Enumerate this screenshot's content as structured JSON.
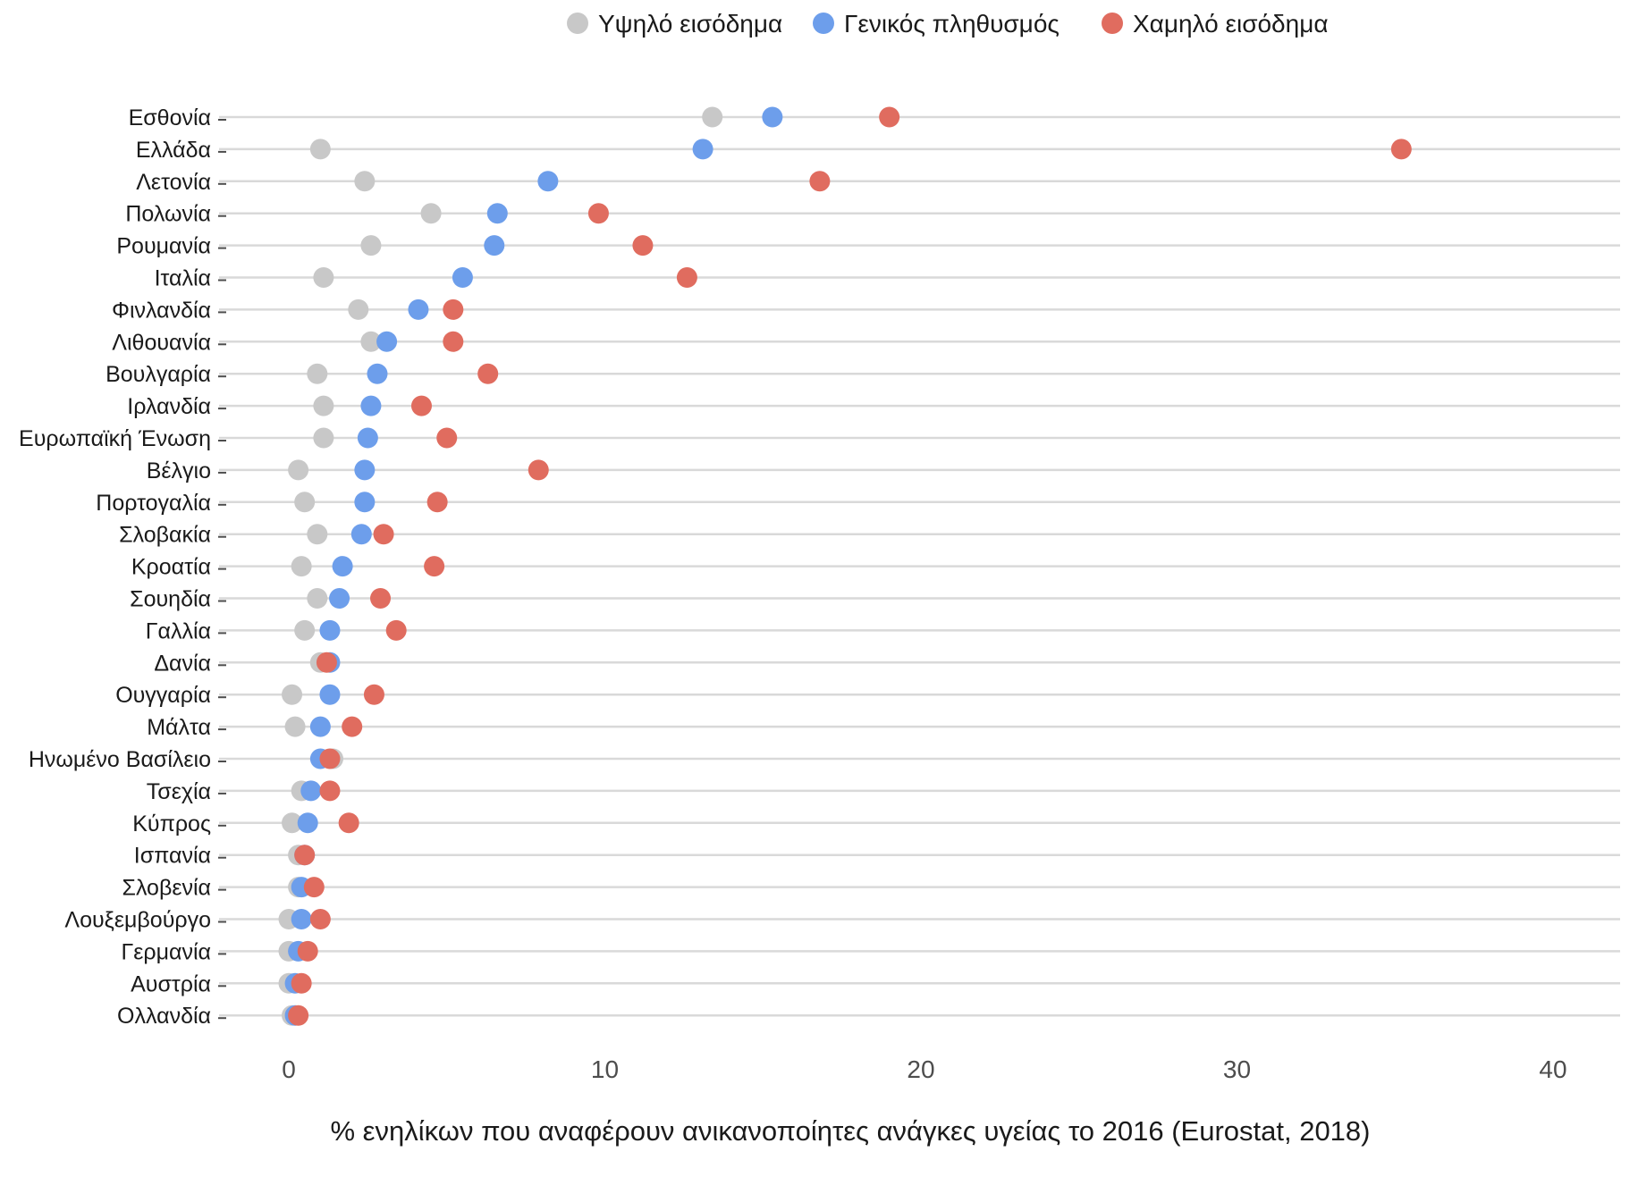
{
  "chart_data": {
    "type": "scatter",
    "title": "",
    "xlabel": "% ενηλίκων που αναφέρουν ανικανοποίητες ανάγκες υγείας το 2016 (Eurostat, 2018)",
    "ylabel": "",
    "xlim": [
      -2,
      42
    ],
    "xticks": [
      0,
      10,
      20,
      30,
      40
    ],
    "grid": "horizontal",
    "legend_position": "top",
    "categories": [
      "Εσθονία",
      "Ελλάδα",
      "Λετονία",
      "Πολωνία",
      "Ρουμανία",
      "Ιταλία",
      "Φινλανδία",
      "Λιθουανία",
      "Βουλγαρία",
      "Ιρλανδία",
      "Ευρωπαϊκή Ένωση",
      "Βέλγιο",
      "Πορτογαλία",
      "Σλοβακία",
      "Κροατία",
      "Σουηδία",
      "Γαλλία",
      "Δανία",
      "Ουγγαρία",
      "Μάλτα",
      "Ηνωμένο Βασίλειο",
      "Τσεχία",
      "Κύπρος",
      "Ισπανία",
      "Σλοβενία",
      "Λουξεμβούργο",
      "Γερμανία",
      "Αυστρία",
      "Ολλανδία"
    ],
    "series": [
      {
        "name": "Υψηλό εισόδημα",
        "color": "#c8c8c8",
        "values": [
          13.4,
          1.0,
          2.4,
          4.5,
          2.6,
          1.1,
          2.2,
          2.6,
          0.9,
          1.1,
          1.1,
          0.3,
          0.5,
          0.9,
          0.4,
          0.9,
          0.5,
          1.0,
          0.1,
          0.2,
          1.4,
          0.4,
          0.1,
          0.3,
          0.3,
          0.0,
          0.0,
          0.0,
          0.1
        ]
      },
      {
        "name": "Γενικός πληθυσμός",
        "color": "#6d9eeb",
        "values": [
          15.3,
          13.1,
          8.2,
          6.6,
          6.5,
          5.5,
          4.1,
          3.1,
          2.8,
          2.6,
          2.5,
          2.4,
          2.4,
          2.3,
          1.7,
          1.6,
          1.3,
          1.3,
          1.3,
          1.0,
          1.0,
          0.7,
          0.6,
          0.5,
          0.4,
          0.4,
          0.3,
          0.2,
          0.2
        ]
      },
      {
        "name": "Χαμηλό εισόδημα",
        "color": "#e06c5f",
        "values": [
          19.0,
          35.2,
          16.8,
          9.8,
          11.2,
          12.6,
          5.2,
          5.2,
          6.3,
          4.2,
          5.0,
          7.9,
          4.7,
          3.0,
          4.6,
          2.9,
          3.4,
          1.2,
          2.7,
          2.0,
          1.3,
          1.3,
          1.9,
          0.5,
          0.8,
          1.0,
          0.6,
          0.4,
          0.3
        ]
      }
    ]
  }
}
